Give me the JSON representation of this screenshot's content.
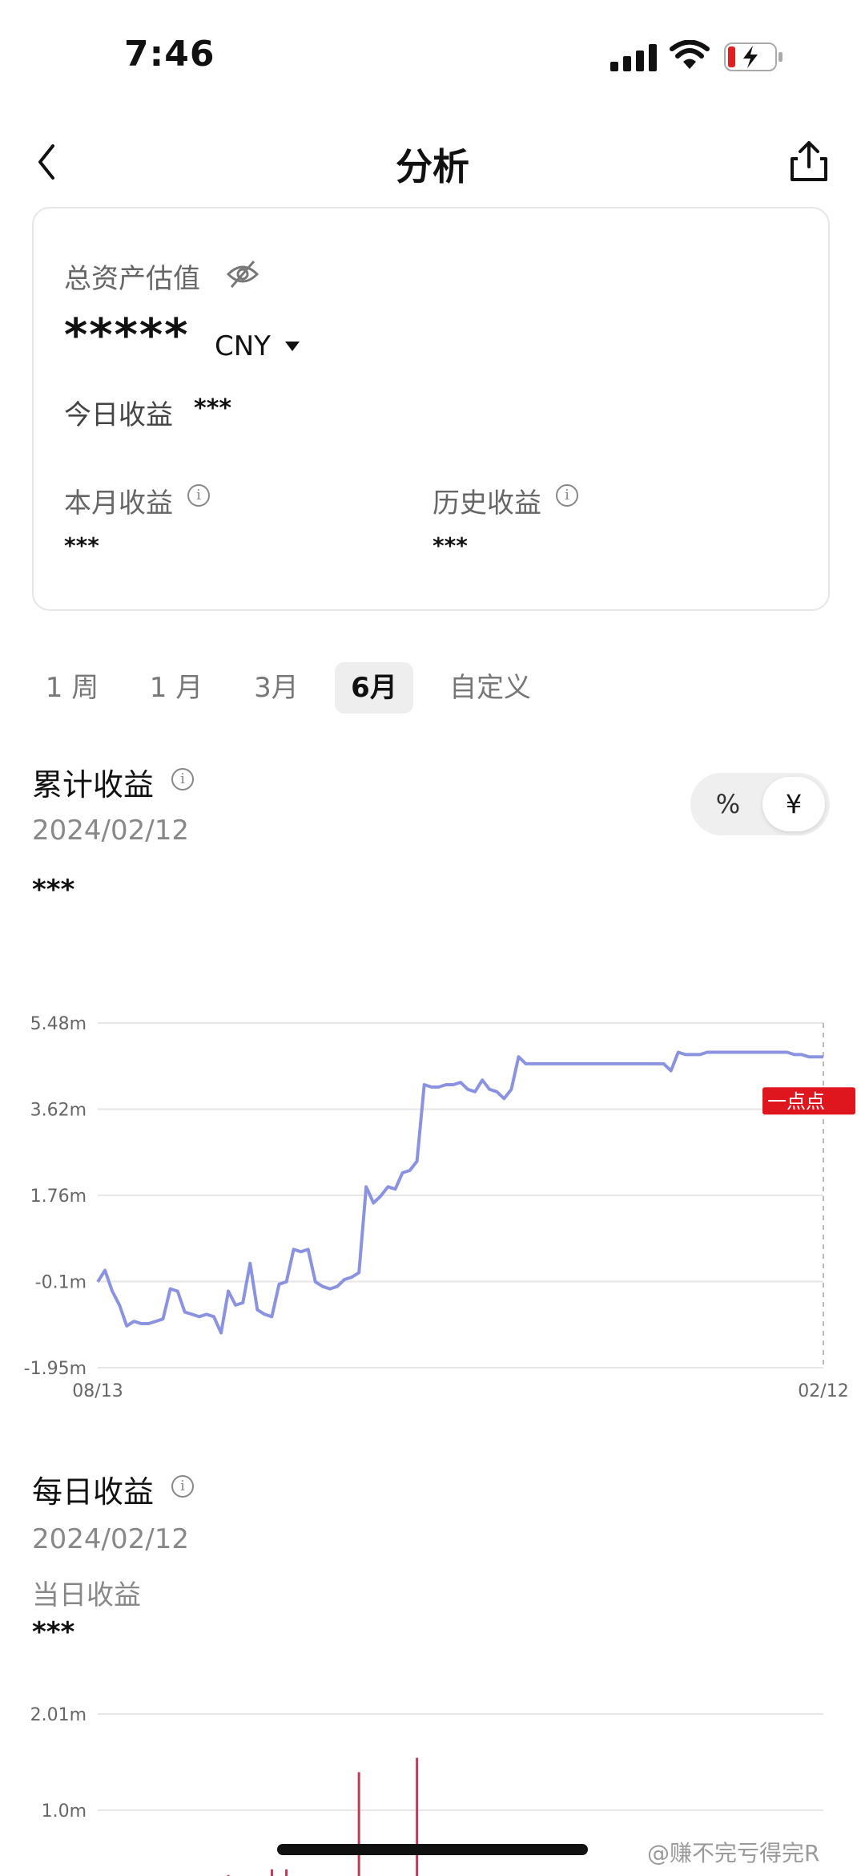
{
  "status_bar": {
    "time": "7:46"
  },
  "nav": {
    "title": "分析",
    "back_icon": "chevron-left-icon",
    "share_icon": "share-icon"
  },
  "summary": {
    "total_label": "总资产估值",
    "total_value": "*****",
    "currency": "CNY",
    "today_label": "今日收益",
    "today_value": "***",
    "month_label": "本月收益",
    "month_value": "***",
    "history_label": "历史收益",
    "history_value": "***"
  },
  "periods": [
    "1 周",
    "1 月",
    "3月",
    "6月",
    "自定义"
  ],
  "selected_period": "6月",
  "cumulative": {
    "title": "累计收益",
    "date": "2024/02/12",
    "value": "***",
    "toggle": {
      "percent": "%",
      "yuan": "¥",
      "selected": "¥"
    },
    "marker_label": "一点点"
  },
  "daily": {
    "title": "每日收益",
    "date": "2024/02/12",
    "sub_label": "当日收益",
    "value": "***"
  },
  "watermark": "@赚不完亏得完R",
  "colors": {
    "line": "#8b93e0",
    "bar": "#c23a5a",
    "marker": "#e0161e"
  },
  "chart_data": [
    {
      "type": "line",
      "title": "",
      "x_labels": [
        "08/13",
        "02/12"
      ],
      "y_ticks": [
        "5.48m",
        "3.62m",
        "1.76m",
        "-0.1m",
        "-1.95m"
      ],
      "ylim": [
        -1.95,
        5.48
      ],
      "x": [
        0,
        1,
        2,
        3,
        4,
        5,
        6,
        7,
        8,
        9,
        10,
        11,
        12,
        13,
        14,
        15,
        16,
        17,
        18,
        19,
        20,
        21,
        22,
        23,
        24,
        25,
        26,
        27,
        28,
        29,
        30,
        31,
        32,
        33,
        34,
        35,
        36,
        37,
        38,
        39,
        40,
        41,
        42,
        43,
        44,
        45,
        46,
        47,
        48,
        49,
        50,
        51,
        52,
        53,
        54,
        55,
        56,
        57,
        58,
        59,
        60,
        61,
        62,
        63,
        64,
        65,
        66,
        67,
        68,
        69,
        70,
        71,
        72,
        73,
        74,
        75,
        76,
        77,
        78,
        79,
        80,
        81,
        82,
        83,
        84,
        85,
        86,
        87,
        88,
        89,
        90,
        91,
        92,
        93,
        94,
        95,
        96,
        97,
        98,
        99,
        100
      ],
      "values": [
        -0.1,
        0.15,
        -0.3,
        -0.6,
        -1.05,
        -0.95,
        -1.0,
        -1.0,
        -0.95,
        -0.9,
        -0.25,
        -0.3,
        -0.75,
        -0.8,
        -0.85,
        -0.8,
        -0.85,
        -1.2,
        -0.3,
        -0.6,
        -0.55,
        0.3,
        -0.7,
        -0.8,
        -0.85,
        -0.15,
        -0.1,
        0.6,
        0.55,
        0.6,
        -0.1,
        -0.2,
        -0.25,
        -0.2,
        -0.05,
        0.0,
        0.1,
        1.95,
        1.6,
        1.75,
        1.95,
        1.9,
        2.25,
        2.3,
        2.5,
        4.15,
        4.1,
        4.1,
        4.15,
        4.15,
        4.2,
        4.05,
        4.0,
        4.25,
        4.05,
        4.0,
        3.85,
        4.05,
        4.75,
        4.6,
        4.6,
        4.6,
        4.6,
        4.6,
        4.6,
        4.6,
        4.6,
        4.6,
        4.6,
        4.6,
        4.6,
        4.6,
        4.6,
        4.6,
        4.6,
        4.6,
        4.6,
        4.6,
        4.6,
        4.45,
        4.85,
        4.8,
        4.8,
        4.8,
        4.85,
        4.85,
        4.85,
        4.85,
        4.85,
        4.85,
        4.85,
        4.85,
        4.85,
        4.85,
        4.85,
        4.85,
        4.8,
        4.8,
        4.75,
        4.75,
        4.75
      ],
      "grid": true
    },
    {
      "type": "bar",
      "title": "",
      "y_ticks": [
        "2.01m",
        "1.0m"
      ],
      "ylim": [
        0,
        2.01
      ],
      "x": [
        6,
        13,
        18,
        21,
        24,
        26,
        27,
        36,
        44,
        52,
        58
      ],
      "values": [
        0.05,
        0.3,
        0.32,
        0.27,
        0.38,
        0.38,
        0.1,
        1.4,
        1.55,
        0.1,
        0.2
      ]
    }
  ]
}
